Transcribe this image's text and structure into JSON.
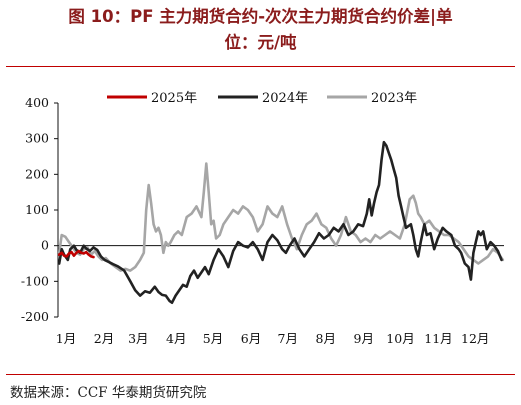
{
  "figure": {
    "title_line1": "图 10：PF 主力期货合约-次次主力期货合约价差|单",
    "title_line2": "位：元/吨",
    "source": "数据来源：CCF 华泰期货研究院"
  },
  "chart_data": {
    "type": "line",
    "x_label_ticks": [
      "1月",
      "2月",
      "3月",
      "4月",
      "5月",
      "6月",
      "7月",
      "8月",
      "9月",
      "10月",
      "11月",
      "12月"
    ],
    "x_unit": "day_of_year",
    "xlim": [
      1,
      365
    ],
    "ylim": [
      -200,
      400
    ],
    "yticks": [
      400,
      300,
      200,
      100,
      0,
      -100,
      -200
    ],
    "zero_line": true,
    "legend_position": "top",
    "series": [
      {
        "name": "2025年",
        "color": "#c00000",
        "points": [
          [
            2,
            -25
          ],
          [
            4,
            -20
          ],
          [
            6,
            -28
          ],
          [
            8,
            -30
          ],
          [
            10,
            -22
          ],
          [
            12,
            -18
          ],
          [
            14,
            -28
          ],
          [
            16,
            -20
          ],
          [
            18,
            -15
          ],
          [
            20,
            -20
          ],
          [
            22,
            -22
          ],
          [
            24,
            -18
          ],
          [
            26,
            -25
          ],
          [
            28,
            -30
          ],
          [
            30,
            -32
          ]
        ]
      },
      {
        "name": "2024年",
        "color": "#222222",
        "points": [
          [
            2,
            -50
          ],
          [
            4,
            -10
          ],
          [
            6,
            -25
          ],
          [
            9,
            -40
          ],
          [
            11,
            -10
          ],
          [
            14,
            0
          ],
          [
            16,
            -12
          ],
          [
            19,
            -20
          ],
          [
            22,
            0
          ],
          [
            24,
            -8
          ],
          [
            27,
            -15
          ],
          [
            30,
            -5
          ],
          [
            33,
            -12
          ],
          [
            36,
            -30
          ],
          [
            39,
            -40
          ],
          [
            42,
            -45
          ],
          [
            46,
            -52
          ],
          [
            50,
            -58
          ],
          [
            55,
            -70
          ],
          [
            60,
            -100
          ],
          [
            64,
            -125
          ],
          [
            68,
            -140
          ],
          [
            72,
            -128
          ],
          [
            76,
            -132
          ],
          [
            80,
            -115
          ],
          [
            83,
            -130
          ],
          [
            86,
            -138
          ],
          [
            89,
            -140
          ],
          [
            92,
            -155
          ],
          [
            94,
            -160
          ],
          [
            97,
            -140
          ],
          [
            100,
            -125
          ],
          [
            103,
            -110
          ],
          [
            106,
            -115
          ],
          [
            109,
            -85
          ],
          [
            112,
            -70
          ],
          [
            115,
            -90
          ],
          [
            118,
            -75
          ],
          [
            121,
            -60
          ],
          [
            124,
            -80
          ],
          [
            128,
            -40
          ],
          [
            132,
            -10
          ],
          [
            136,
            -30
          ],
          [
            140,
            -60
          ],
          [
            144,
            -15
          ],
          [
            148,
            10
          ],
          [
            152,
            0
          ],
          [
            156,
            -5
          ],
          [
            160,
            10
          ],
          [
            164,
            -10
          ],
          [
            168,
            -40
          ],
          [
            172,
            10
          ],
          [
            176,
            30
          ],
          [
            180,
            15
          ],
          [
            184,
            -10
          ],
          [
            187,
            -20
          ],
          [
            190,
            0
          ],
          [
            194,
            20
          ],
          [
            198,
            -10
          ],
          [
            202,
            -30
          ],
          [
            206,
            -10
          ],
          [
            210,
            10
          ],
          [
            214,
            35
          ],
          [
            218,
            20
          ],
          [
            222,
            30
          ],
          [
            226,
            50
          ],
          [
            230,
            40
          ],
          [
            234,
            60
          ],
          [
            238,
            30
          ],
          [
            242,
            40
          ],
          [
            246,
            60
          ],
          [
            250,
            55
          ],
          [
            253,
            90
          ],
          [
            255,
            130
          ],
          [
            257,
            85
          ],
          [
            259,
            120
          ],
          [
            261,
            150
          ],
          [
            263,
            170
          ],
          [
            265,
            240
          ],
          [
            267,
            290
          ],
          [
            269,
            280
          ],
          [
            271,
            260
          ],
          [
            273,
            240
          ],
          [
            275,
            215
          ],
          [
            277,
            190
          ],
          [
            279,
            140
          ],
          [
            281,
            110
          ],
          [
            283,
            80
          ],
          [
            285,
            50
          ],
          [
            287,
            55
          ],
          [
            289,
            60
          ],
          [
            291,
            30
          ],
          [
            293,
            -10
          ],
          [
            295,
            -30
          ],
          [
            297,
            10
          ],
          [
            300,
            60
          ],
          [
            302,
            30
          ],
          [
            305,
            35
          ],
          [
            308,
            -10
          ],
          [
            311,
            20
          ],
          [
            315,
            50
          ],
          [
            318,
            40
          ],
          [
            322,
            30
          ],
          [
            325,
            0
          ],
          [
            328,
            -10
          ],
          [
            330,
            -20
          ],
          [
            333,
            -50
          ],
          [
            336,
            -60
          ],
          [
            338,
            -95
          ],
          [
            340,
            -20
          ],
          [
            342,
            10
          ],
          [
            344,
            40
          ],
          [
            346,
            30
          ],
          [
            348,
            40
          ],
          [
            351,
            -10
          ],
          [
            354,
            10
          ],
          [
            357,
            0
          ],
          [
            360,
            -15
          ],
          [
            363,
            -40
          ]
        ]
      },
      {
        "name": "2023年",
        "color": "#a6a6a6",
        "points": [
          [
            2,
            -20
          ],
          [
            4,
            30
          ],
          [
            7,
            25
          ],
          [
            10,
            10
          ],
          [
            13,
            -5
          ],
          [
            16,
            -20
          ],
          [
            19,
            -25
          ],
          [
            22,
            -10
          ],
          [
            25,
            -5
          ],
          [
            28,
            -25
          ],
          [
            31,
            -15
          ],
          [
            34,
            -30
          ],
          [
            37,
            -40
          ],
          [
            40,
            -35
          ],
          [
            44,
            -50
          ],
          [
            48,
            -60
          ],
          [
            52,
            -70
          ],
          [
            56,
            -65
          ],
          [
            60,
            -70
          ],
          [
            64,
            -60
          ],
          [
            68,
            -40
          ],
          [
            71,
            -20
          ],
          [
            73,
            100
          ],
          [
            75,
            170
          ],
          [
            77,
            120
          ],
          [
            79,
            60
          ],
          [
            81,
            40
          ],
          [
            83,
            50
          ],
          [
            85,
            30
          ],
          [
            87,
            -20
          ],
          [
            89,
            10
          ],
          [
            91,
            0
          ],
          [
            93,
            10
          ],
          [
            96,
            30
          ],
          [
            99,
            40
          ],
          [
            102,
            30
          ],
          [
            106,
            80
          ],
          [
            110,
            90
          ],
          [
            114,
            110
          ],
          [
            118,
            80
          ],
          [
            120,
            150
          ],
          [
            122,
            230
          ],
          [
            124,
            150
          ],
          [
            126,
            60
          ],
          [
            128,
            70
          ],
          [
            130,
            20
          ],
          [
            133,
            30
          ],
          [
            136,
            60
          ],
          [
            140,
            80
          ],
          [
            144,
            100
          ],
          [
            148,
            90
          ],
          [
            152,
            110
          ],
          [
            156,
            100
          ],
          [
            160,
            80
          ],
          [
            164,
            40
          ],
          [
            168,
            60
          ],
          [
            172,
            110
          ],
          [
            176,
            90
          ],
          [
            180,
            80
          ],
          [
            184,
            110
          ],
          [
            188,
            60
          ],
          [
            192,
            20
          ],
          [
            196,
            -10
          ],
          [
            200,
            30
          ],
          [
            204,
            60
          ],
          [
            208,
            70
          ],
          [
            212,
            90
          ],
          [
            216,
            60
          ],
          [
            220,
            50
          ],
          [
            224,
            20
          ],
          [
            228,
            0
          ],
          [
            232,
            30
          ],
          [
            236,
            80
          ],
          [
            240,
            40
          ],
          [
            244,
            30
          ],
          [
            248,
            10
          ],
          [
            252,
            20
          ],
          [
            256,
            10
          ],
          [
            260,
            30
          ],
          [
            264,
            20
          ],
          [
            268,
            30
          ],
          [
            272,
            40
          ],
          [
            276,
            30
          ],
          [
            280,
            20
          ],
          [
            284,
            60
          ],
          [
            288,
            130
          ],
          [
            291,
            140
          ],
          [
            293,
            120
          ],
          [
            295,
            90
          ],
          [
            297,
            80
          ],
          [
            300,
            60
          ],
          [
            304,
            70
          ],
          [
            308,
            50
          ],
          [
            312,
            40
          ],
          [
            316,
            30
          ],
          [
            320,
            30
          ],
          [
            324,
            20
          ],
          [
            328,
            10
          ],
          [
            332,
            -10
          ],
          [
            336,
            -30
          ],
          [
            340,
            -40
          ],
          [
            344,
            -50
          ],
          [
            348,
            -40
          ],
          [
            352,
            -30
          ],
          [
            356,
            -10
          ],
          [
            360,
            -20
          ],
          [
            364,
            -40
          ]
        ]
      }
    ]
  }
}
